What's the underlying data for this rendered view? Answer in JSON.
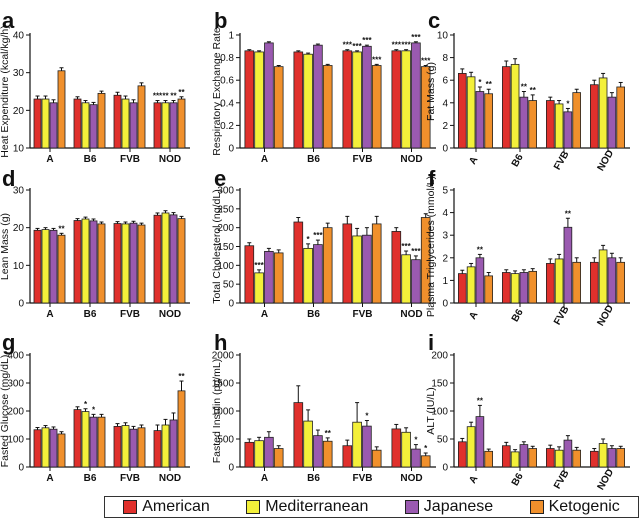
{
  "legend": {
    "american": "American",
    "mediterranean": "Mediterranean",
    "japanese": "Japanese",
    "ketogenic": "Ketogenic"
  },
  "colors": {
    "American": "#e0302c",
    "Mediterranean": "#f3f03a",
    "Japanese": "#9a5ab0",
    "Ketogenic": "#f0902c"
  },
  "chart_data": [
    {
      "panel": "a",
      "type": "bar",
      "categories": [
        "A",
        "B6",
        "FVB",
        "NOD"
      ],
      "ylabel": "Heat Expenditure (kcal/kg/h)",
      "ylim": [
        10,
        40
      ],
      "yticks": [
        10,
        20,
        30,
        40
      ],
      "series": [
        {
          "name": "American",
          "values": [
            23,
            23,
            24,
            22
          ],
          "errors": [
            0.8,
            0.6,
            0.8,
            0.6
          ]
        },
        {
          "name": "Mediterranean",
          "values": [
            23,
            22,
            23,
            22
          ],
          "errors": [
            0.8,
            0.6,
            0.8,
            0.6
          ]
        },
        {
          "name": "Japanese",
          "values": [
            22,
            21.5,
            22,
            22
          ],
          "errors": [
            0.8,
            0.6,
            0.8,
            0.6
          ]
        },
        {
          "name": "Ketogenic",
          "values": [
            30.5,
            24.5,
            26.5,
            23
          ],
          "errors": [
            0.8,
            0.6,
            0.8,
            0.6
          ]
        }
      ],
      "stars": [
        [
          null,
          null,
          null,
          "***"
        ],
        [
          null,
          null,
          null,
          "**"
        ],
        [
          null,
          null,
          null,
          "**"
        ],
        [
          null,
          null,
          null,
          "**"
        ]
      ]
    },
    {
      "panel": "b",
      "type": "bar",
      "categories": [
        "A",
        "B6",
        "FVB",
        "NOD"
      ],
      "ylabel": "Respiratory Exchange Rate",
      "ylim": [
        0,
        1.0
      ],
      "yticks": [
        0,
        0.2,
        0.4,
        0.6,
        0.8,
        1.0
      ],
      "series": [
        {
          "name": "American",
          "values": [
            0.86,
            0.85,
            0.86,
            0.86
          ],
          "errors": [
            0.01,
            0.01,
            0.01,
            0.01
          ]
        },
        {
          "name": "Mediterranean",
          "values": [
            0.85,
            0.83,
            0.85,
            0.86
          ],
          "errors": [
            0.01,
            0.01,
            0.01,
            0.01
          ]
        },
        {
          "name": "Japanese",
          "values": [
            0.93,
            0.91,
            0.9,
            0.93
          ],
          "errors": [
            0.01,
            0.01,
            0.01,
            0.01
          ]
        },
        {
          "name": "Ketogenic",
          "values": [
            0.72,
            0.73,
            0.73,
            0.72
          ],
          "errors": [
            0.01,
            0.01,
            0.01,
            0.01
          ]
        }
      ],
      "stars": [
        [
          null,
          null,
          "***",
          "***"
        ],
        [
          null,
          null,
          "***",
          "***"
        ],
        [
          null,
          null,
          "***",
          "***"
        ],
        [
          null,
          null,
          "***",
          "***"
        ]
      ]
    },
    {
      "panel": "c",
      "type": "bar",
      "categories": [
        "A",
        "B6",
        "FVB",
        "NOD"
      ],
      "ylabel": "Fat Mass (g)",
      "ylim": [
        0,
        10
      ],
      "yticks": [
        0,
        2,
        4,
        6,
        8,
        10
      ],
      "series": [
        {
          "name": "American",
          "values": [
            6.6,
            7.2,
            4.2,
            5.6
          ],
          "errors": [
            0.4,
            0.5,
            0.3,
            0.4
          ]
        },
        {
          "name": "Mediterranean",
          "values": [
            6.3,
            7.4,
            3.9,
            6.2
          ],
          "errors": [
            0.4,
            0.5,
            0.3,
            0.4
          ]
        },
        {
          "name": "Japanese",
          "values": [
            5.0,
            4.5,
            3.2,
            4.5
          ],
          "errors": [
            0.4,
            0.5,
            0.3,
            0.4
          ]
        },
        {
          "name": "Ketogenic",
          "values": [
            4.8,
            4.2,
            4.9,
            5.4
          ],
          "errors": [
            0.4,
            0.5,
            0.3,
            0.4
          ]
        }
      ],
      "stars": [
        [
          null,
          null,
          null,
          null
        ],
        [
          null,
          null,
          null,
          null
        ],
        [
          "*",
          "**",
          "*",
          null
        ],
        [
          "**",
          "**",
          null,
          null
        ]
      ]
    },
    {
      "panel": "d",
      "type": "bar",
      "categories": [
        "A",
        "B6",
        "FVB",
        "NOD"
      ],
      "ylabel": "Lean Mass (g)",
      "ylim": [
        0,
        30
      ],
      "yticks": [
        0,
        10,
        20,
        30
      ],
      "series": [
        {
          "name": "American",
          "values": [
            19.3,
            21.9,
            21.1,
            23.3
          ],
          "errors": [
            0.5,
            0.5,
            0.5,
            0.6
          ]
        },
        {
          "name": "Mediterranean",
          "values": [
            19.5,
            22.3,
            21.0,
            23.9
          ],
          "errors": [
            0.5,
            0.5,
            0.5,
            0.6
          ]
        },
        {
          "name": "Japanese",
          "values": [
            19.3,
            21.8,
            21.2,
            23.4
          ],
          "errors": [
            0.5,
            0.5,
            0.5,
            0.6
          ]
        },
        {
          "name": "Ketogenic",
          "values": [
            18.0,
            21.0,
            20.7,
            22.4
          ],
          "errors": [
            0.5,
            0.5,
            0.5,
            0.6
          ]
        }
      ],
      "stars": [
        [
          null,
          null,
          null,
          null
        ],
        [
          null,
          null,
          null,
          null
        ],
        [
          null,
          null,
          null,
          null
        ],
        [
          "**",
          null,
          null,
          null
        ]
      ]
    },
    {
      "panel": "e",
      "type": "bar",
      "categories": [
        "A",
        "B6",
        "FVB",
        "NOD"
      ],
      "ylabel": "Total Cholesterol (ng/dL)",
      "ylim": [
        0,
        300
      ],
      "yticks": [
        0,
        50,
        100,
        150,
        200,
        250,
        300
      ],
      "series": [
        {
          "name": "American",
          "values": [
            152,
            215,
            210,
            190
          ],
          "errors": [
            8,
            12,
            20,
            10
          ]
        },
        {
          "name": "Mediterranean",
          "values": [
            80,
            145,
            178,
            128
          ],
          "errors": [
            8,
            12,
            20,
            10
          ]
        },
        {
          "name": "Japanese",
          "values": [
            137,
            155,
            180,
            115
          ],
          "errors": [
            8,
            12,
            20,
            10
          ]
        },
        {
          "name": "Ketogenic",
          "values": [
            133,
            200,
            210,
            227
          ],
          "errors": [
            8,
            12,
            20,
            10
          ]
        }
      ],
      "stars": [
        [
          null,
          null,
          null,
          null
        ],
        [
          "***",
          "*",
          null,
          "***"
        ],
        [
          null,
          "***",
          null,
          "***"
        ],
        [
          null,
          null,
          null,
          null
        ]
      ]
    },
    {
      "panel": "f",
      "type": "bar",
      "categories": [
        "A",
        "B6",
        "FVB",
        "NOD"
      ],
      "ylabel": "Plasma Triglycerides (mmol/L)",
      "ylim": [
        0,
        5
      ],
      "yticks": [
        0,
        1,
        2,
        3,
        4,
        5
      ],
      "series": [
        {
          "name": "American",
          "values": [
            1.3,
            1.35,
            1.75,
            1.8
          ],
          "errors": [
            0.15,
            0.12,
            0.2,
            0.2
          ]
        },
        {
          "name": "Mediterranean",
          "values": [
            1.6,
            1.3,
            1.95,
            2.35
          ],
          "errors": [
            0.15,
            0.12,
            0.2,
            0.2
          ]
        },
        {
          "name": "Japanese",
          "values": [
            2.0,
            1.35,
            3.35,
            2.0
          ],
          "errors": [
            0.15,
            0.12,
            0.4,
            0.2
          ]
        },
        {
          "name": "Ketogenic",
          "values": [
            1.2,
            1.4,
            1.8,
            1.8
          ],
          "errors": [
            0.15,
            0.12,
            0.2,
            0.2
          ]
        }
      ],
      "stars": [
        [
          null,
          null,
          null,
          null
        ],
        [
          null,
          null,
          null,
          null
        ],
        [
          "**",
          null,
          "**",
          null
        ],
        [
          null,
          null,
          null,
          null
        ]
      ]
    },
    {
      "panel": "g",
      "type": "bar",
      "categories": [
        "A",
        "B6",
        "FVB",
        "NOD"
      ],
      "ylabel": "Fasted Glucose (mg/dL)",
      "ylim": [
        0,
        400
      ],
      "yticks": [
        0,
        100,
        200,
        300,
        400
      ],
      "series": [
        {
          "name": "American",
          "values": [
            133,
            205,
            145,
            130
          ],
          "errors": [
            8,
            10,
            10,
            20
          ]
        },
        {
          "name": "Mediterranean",
          "values": [
            140,
            198,
            148,
            150
          ],
          "errors": [
            8,
            10,
            10,
            20
          ]
        },
        {
          "name": "Japanese",
          "values": [
            135,
            178,
            135,
            168
          ],
          "errors": [
            8,
            10,
            10,
            25
          ]
        },
        {
          "name": "Ketogenic",
          "values": [
            118,
            178,
            140,
            272
          ],
          "errors": [
            8,
            10,
            10,
            35
          ]
        }
      ],
      "stars": [
        [
          null,
          null,
          null,
          null
        ],
        [
          null,
          "*",
          null,
          null
        ],
        [
          null,
          "*",
          null,
          null
        ],
        [
          null,
          null,
          null,
          "**"
        ]
      ]
    },
    {
      "panel": "h",
      "type": "bar",
      "categories": [
        "A",
        "B6",
        "FVB",
        "NOD"
      ],
      "ylabel": "Fasted Insulin (pg/mL)",
      "ylim": [
        0,
        2000
      ],
      "yticks": [
        0,
        500,
        1000,
        1500,
        2000
      ],
      "series": [
        {
          "name": "American",
          "values": [
            440,
            1150,
            380,
            680
          ],
          "errors": [
            60,
            300,
            100,
            80
          ]
        },
        {
          "name": "Mediterranean",
          "values": [
            470,
            820,
            800,
            620
          ],
          "errors": [
            60,
            200,
            350,
            80
          ]
        },
        {
          "name": "Japanese",
          "values": [
            530,
            560,
            730,
            320
          ],
          "errors": [
            100,
            100,
            100,
            80
          ]
        },
        {
          "name": "Ketogenic",
          "values": [
            330,
            460,
            300,
            200
          ],
          "errors": [
            50,
            60,
            60,
            50
          ]
        }
      ],
      "stars": [
        [
          null,
          null,
          null,
          null
        ],
        [
          null,
          null,
          null,
          null
        ],
        [
          null,
          null,
          "*",
          "*"
        ],
        [
          null,
          "**",
          null,
          "*"
        ]
      ]
    },
    {
      "panel": "i",
      "type": "bar",
      "categories": [
        "A",
        "B6",
        "FVB",
        "NOD"
      ],
      "ylabel": "ALT (IU/L)",
      "ylim": [
        0,
        200
      ],
      "yticks": [
        0,
        50,
        100,
        150,
        200
      ],
      "series": [
        {
          "name": "American",
          "values": [
            45,
            38,
            33,
            28
          ],
          "errors": [
            6,
            6,
            6,
            5
          ]
        },
        {
          "name": "Mediterranean",
          "values": [
            72,
            27,
            30,
            42
          ],
          "errors": [
            8,
            4,
            6,
            8
          ]
        },
        {
          "name": "Japanese",
          "values": [
            90,
            40,
            48,
            33
          ],
          "errors": [
            20,
            5,
            8,
            5
          ]
        },
        {
          "name": "Ketogenic",
          "values": [
            28,
            33,
            30,
            33
          ],
          "errors": [
            4,
            4,
            5,
            4
          ]
        }
      ],
      "stars": [
        [
          null,
          null,
          null,
          null
        ],
        [
          null,
          null,
          null,
          null
        ],
        [
          "**",
          null,
          null,
          null
        ],
        [
          null,
          null,
          null,
          null
        ]
      ]
    }
  ]
}
